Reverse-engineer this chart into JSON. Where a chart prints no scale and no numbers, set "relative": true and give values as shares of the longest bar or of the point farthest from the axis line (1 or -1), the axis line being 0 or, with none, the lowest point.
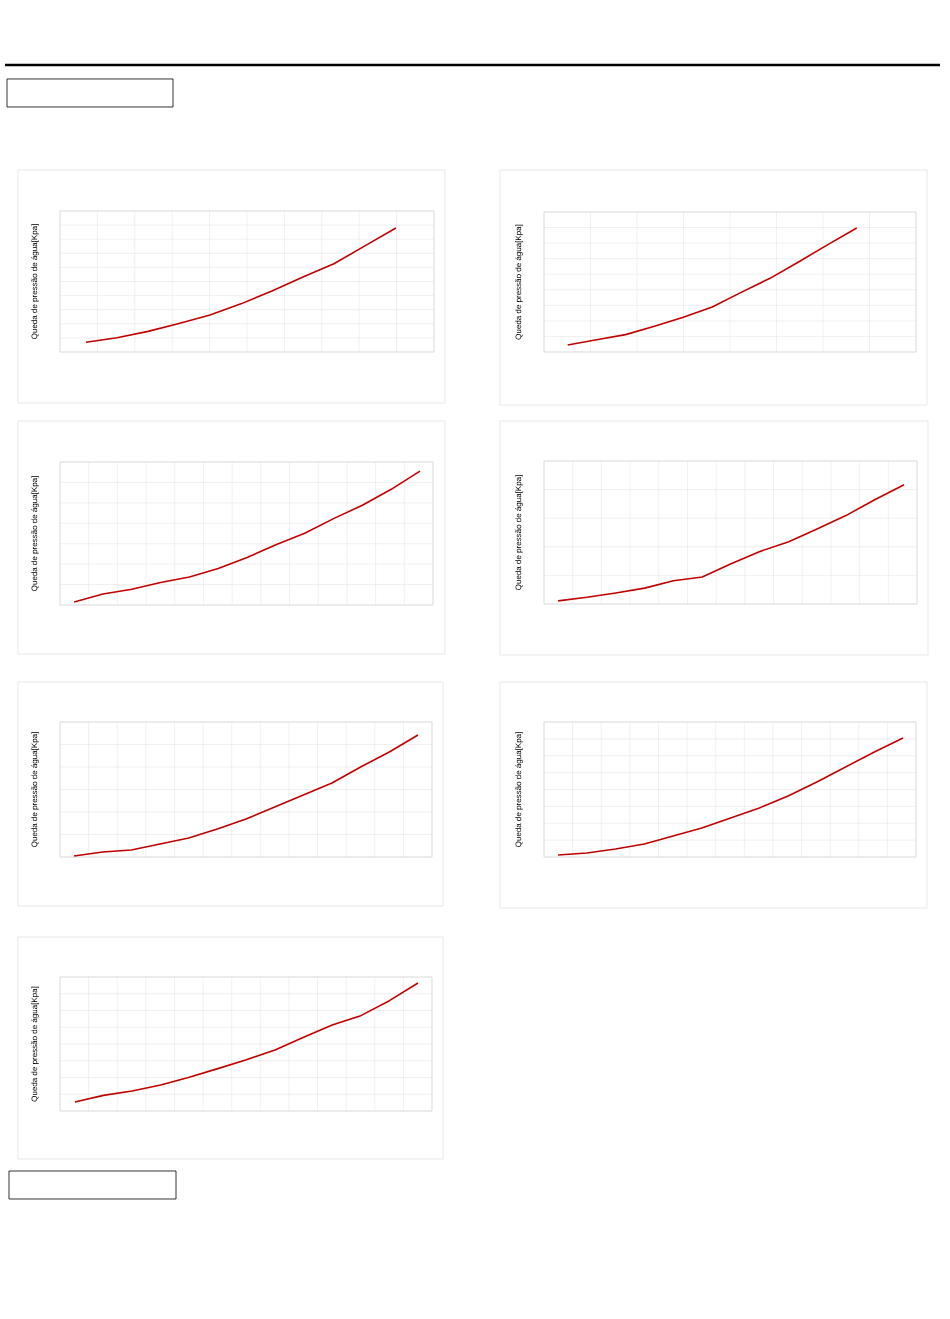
{
  "chart_data": [
    {
      "type": "line",
      "ylabel": "Queda de pressão de água[Kpa]",
      "relative": true,
      "grid": true,
      "categories": [
        null,
        null,
        null,
        null,
        null,
        null,
        null,
        null,
        null,
        null,
        null
      ],
      "series": [
        {
          "color": "#c00000",
          "values": [
            0.078,
            0.115,
            0.166,
            0.23,
            0.299,
            0.388,
            0.492,
            0.604,
            0.711,
            0.856,
            1
          ]
        }
      ]
    },
    {
      "type": "line",
      "ylabel": "Queda de pressão de água[Kpa]",
      "relative": true,
      "grid": true,
      "categories": [
        null,
        null,
        null,
        null,
        null,
        null,
        null,
        null,
        null,
        null,
        null
      ],
      "series": [
        {
          "color": "#c00000",
          "values": [
            0.056,
            0.099,
            0.14,
            0.207,
            0.28,
            0.363,
            0.481,
            0.594,
            0.728,
            0.866,
            1
          ]
        }
      ]
    },
    {
      "type": "line",
      "ylabel": "Queda de pressão de água[Kpa]",
      "relative": true,
      "grid": true,
      "categories": [
        null,
        null,
        null,
        null,
        null,
        null,
        null,
        null,
        null,
        null,
        null,
        null,
        null
      ],
      "series": [
        {
          "color": "#c00000",
          "values": [
            0.023,
            0.082,
            0.118,
            0.168,
            0.209,
            0.273,
            0.355,
            0.45,
            0.536,
            0.645,
            0.745,
            0.864,
            1
          ]
        }
      ]
    },
    {
      "type": "line",
      "ylabel": "Queda de pressão de água[Kpa]",
      "relative": true,
      "grid": true,
      "categories": [
        null,
        null,
        null,
        null,
        null,
        null,
        null,
        null,
        null,
        null,
        null,
        null,
        null
      ],
      "series": [
        {
          "color": "#c00000",
          "values": [
            0.026,
            0.056,
            0.092,
            0.133,
            0.195,
            0.226,
            0.338,
            0.441,
            0.523,
            0.631,
            0.744,
            0.877,
            1
          ]
        }
      ]
    },
    {
      "type": "line",
      "ylabel": "Queda de pressão de água[Kpa]",
      "relative": true,
      "grid": true,
      "categories": [
        null,
        null,
        null,
        null,
        null,
        null,
        null,
        null,
        null,
        null,
        null,
        null,
        null
      ],
      "series": [
        {
          "color": "#c00000",
          "values": [
            0.008,
            0.041,
            0.057,
            0.107,
            0.156,
            0.23,
            0.311,
            0.41,
            0.508,
            0.607,
            0.738,
            0.861,
            1
          ]
        }
      ]
    },
    {
      "type": "line",
      "ylabel": "Queda de pressão de água[Kpa]",
      "relative": true,
      "grid": true,
      "categories": [
        null,
        null,
        null,
        null,
        null,
        null,
        null,
        null,
        null,
        null,
        null,
        null,
        null
      ],
      "series": [
        {
          "color": "#c00000",
          "values": [
            0.017,
            0.034,
            0.067,
            0.109,
            0.176,
            0.244,
            0.328,
            0.412,
            0.513,
            0.63,
            0.756,
            0.882,
            1
          ]
        }
      ]
    },
    {
      "type": "line",
      "ylabel": "Queda de pressão de água[Kpa]",
      "relative": true,
      "grid": true,
      "categories": [
        null,
        null,
        null,
        null,
        null,
        null,
        null,
        null,
        null,
        null,
        null,
        null,
        null
      ],
      "series": [
        {
          "color": "#c00000",
          "values": [
            0.07,
            0.122,
            0.156,
            0.203,
            0.263,
            0.331,
            0.401,
            0.477,
            0.576,
            0.672,
            0.745,
            0.862,
            1
          ]
        }
      ]
    }
  ]
}
